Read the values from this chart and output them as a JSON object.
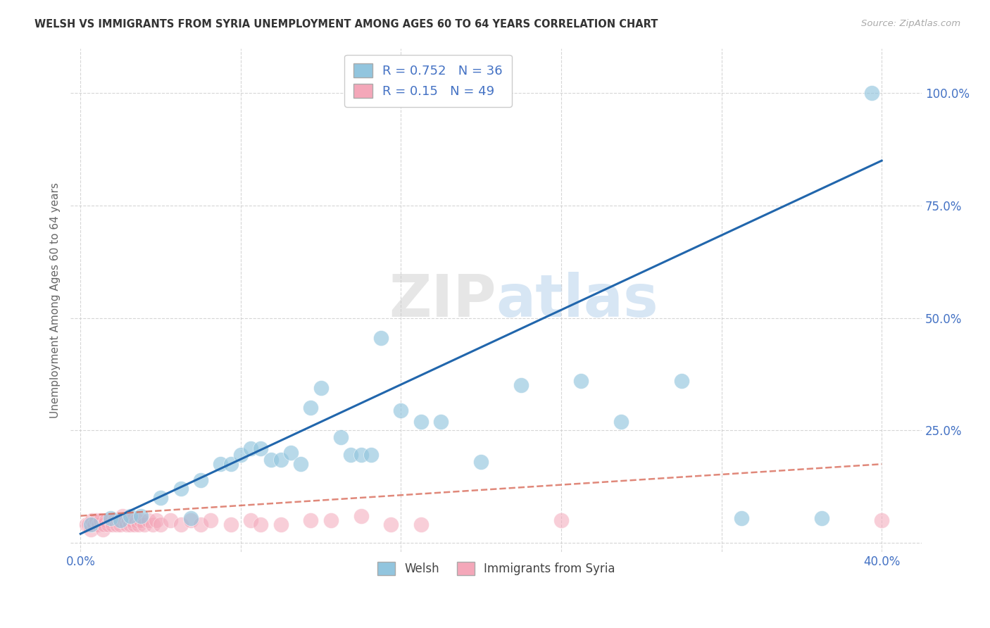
{
  "title": "WELSH VS IMMIGRANTS FROM SYRIA UNEMPLOYMENT AMONG AGES 60 TO 64 YEARS CORRELATION CHART",
  "source": "Source: ZipAtlas.com",
  "ylabel_label": "Unemployment Among Ages 60 to 64 years",
  "welsh_color": "#92c5de",
  "syria_color": "#f4a7b9",
  "welsh_line_color": "#2166ac",
  "syria_line_color": "#d6604d",
  "welsh_R": 0.752,
  "welsh_N": 36,
  "syria_R": 0.15,
  "syria_N": 49,
  "welsh_x": [
    0.005,
    0.015,
    0.02,
    0.025,
    0.03,
    0.04,
    0.05,
    0.055,
    0.06,
    0.07,
    0.075,
    0.08,
    0.085,
    0.09,
    0.095,
    0.1,
    0.105,
    0.11,
    0.115,
    0.12,
    0.13,
    0.135,
    0.14,
    0.145,
    0.15,
    0.16,
    0.17,
    0.18,
    0.2,
    0.22,
    0.25,
    0.27,
    0.3,
    0.33,
    0.37,
    0.395
  ],
  "welsh_y": [
    0.04,
    0.055,
    0.05,
    0.06,
    0.06,
    0.1,
    0.12,
    0.055,
    0.14,
    0.175,
    0.175,
    0.195,
    0.21,
    0.21,
    0.185,
    0.185,
    0.2,
    0.175,
    0.3,
    0.345,
    0.235,
    0.195,
    0.195,
    0.195,
    0.455,
    0.295,
    0.27,
    0.27,
    0.18,
    0.35,
    0.36,
    0.27,
    0.36,
    0.055,
    0.055,
    1.0
  ],
  "syria_x": [
    0.003,
    0.004,
    0.005,
    0.006,
    0.007,
    0.008,
    0.009,
    0.01,
    0.011,
    0.012,
    0.013,
    0.014,
    0.015,
    0.016,
    0.017,
    0.018,
    0.019,
    0.02,
    0.021,
    0.022,
    0.023,
    0.024,
    0.025,
    0.026,
    0.027,
    0.028,
    0.029,
    0.03,
    0.032,
    0.034,
    0.036,
    0.038,
    0.04,
    0.045,
    0.05,
    0.055,
    0.06,
    0.065,
    0.075,
    0.085,
    0.09,
    0.1,
    0.115,
    0.125,
    0.14,
    0.155,
    0.17,
    0.24,
    0.4
  ],
  "syria_y": [
    0.04,
    0.04,
    0.03,
    0.05,
    0.04,
    0.05,
    0.04,
    0.05,
    0.03,
    0.04,
    0.05,
    0.04,
    0.05,
    0.04,
    0.05,
    0.04,
    0.05,
    0.04,
    0.06,
    0.05,
    0.04,
    0.05,
    0.04,
    0.05,
    0.04,
    0.05,
    0.04,
    0.05,
    0.04,
    0.05,
    0.04,
    0.05,
    0.04,
    0.05,
    0.04,
    0.05,
    0.04,
    0.05,
    0.04,
    0.05,
    0.04,
    0.04,
    0.05,
    0.05,
    0.06,
    0.04,
    0.04,
    0.05,
    0.05
  ],
  "xlim": [
    -0.005,
    0.42
  ],
  "ylim": [
    -0.02,
    1.1
  ],
  "x_ticks": [
    0.0,
    0.08,
    0.16,
    0.24,
    0.32,
    0.4
  ],
  "x_tick_labels": [
    "0.0%",
    "",
    "",
    "",
    "",
    "40.0%"
  ],
  "y_ticks": [
    0.0,
    0.25,
    0.5,
    0.75,
    1.0
  ],
  "y_tick_labels": [
    "",
    "25.0%",
    "50.0%",
    "75.0%",
    "100.0%"
  ],
  "welsh_line_x": [
    0.0,
    0.4
  ],
  "welsh_line_y": [
    0.02,
    0.85
  ],
  "syria_line_x": [
    0.0,
    0.4
  ],
  "syria_line_y": [
    0.06,
    0.175
  ]
}
